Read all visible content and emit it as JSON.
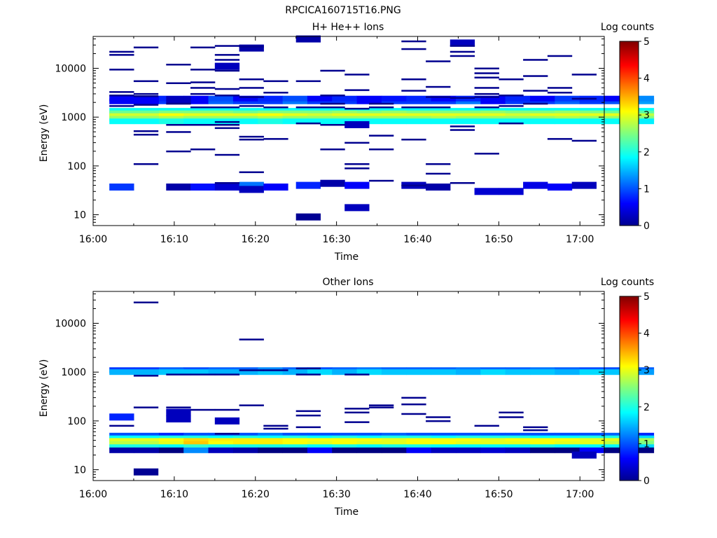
{
  "figure_title": "RPCICA160715T16.PNG",
  "chart_data": [
    {
      "type": "heatmap",
      "title": "H+ He++ Ions",
      "xlabel": "Time",
      "ylabel": "Energy (eV)",
      "xlim": [
        "16:00",
        "17:03"
      ],
      "ylim": [
        6,
        45000
      ],
      "yscale": "log",
      "xticks": [
        "16:00",
        "16:10",
        "16:20",
        "16:30",
        "16:40",
        "16:50",
        "17:00"
      ],
      "yticks": [
        "10",
        "100",
        "1000",
        "10000"
      ],
      "colorbar": {
        "label": "Log counts",
        "ticks": [
          "0",
          "1",
          "2",
          "3",
          "4",
          "5"
        ],
        "range": [
          0,
          5
        ],
        "colormap": "jet"
      },
      "bands": [
        {
          "e": 2100,
          "v": [
            0.6,
            0.6,
            0.9,
            0.6,
            1.1,
            0.9,
            0.9,
            1.2,
            0.9,
            0.9,
            0.6,
            0.9,
            0.9,
            0.9,
            1.2,
            0.6,
            0.9,
            0.9,
            1.1,
            0.9,
            1.0,
            1.4
          ]
        },
        {
          "e": 2400,
          "v": [
            0.6,
            0.6,
            0.8,
            0.6,
            1.0,
            0.6,
            0.8,
            1.0,
            0.6,
            0.8,
            0.6,
            0.7,
            0.8,
            0.6,
            0.8,
            0.6,
            0.8,
            0.6,
            0.9,
            0.8,
            0.6,
            1.3
          ]
        },
        {
          "e": 1350,
          "v": [
            1.9,
            1.9,
            1.9,
            1.9,
            1.9,
            1.9,
            1.9,
            1.9,
            1.9,
            1.9,
            1.9,
            1.9,
            1.9,
            1.9,
            1.9,
            1.9,
            1.9,
            1.9,
            1.9,
            1.9,
            1.9,
            1.9
          ]
        },
        {
          "e": 1200,
          "v": [
            2.4,
            2.4,
            2.5,
            2.5,
            2.5,
            2.4,
            2.5,
            2.5,
            2.5,
            2.6,
            2.5,
            2.6,
            2.5,
            2.5,
            2.5,
            2.6,
            2.5,
            2.5,
            2.6,
            2.5,
            2.4,
            2.3
          ]
        },
        {
          "e": 1050,
          "v": [
            2.9,
            2.9,
            3.1,
            3.0,
            3.0,
            3.0,
            3.1,
            3.0,
            2.9,
            3.0,
            3.0,
            3.0,
            3.0,
            3.0,
            3.0,
            3.0,
            2.9,
            3.0,
            3.0,
            3.0,
            3.0,
            2.8
          ]
        },
        {
          "e": 920,
          "v": [
            2.6,
            2.6,
            2.7,
            2.6,
            2.6,
            2.6,
            2.7,
            2.6,
            2.6,
            2.6,
            2.6,
            2.6,
            2.6,
            2.7,
            2.6,
            2.6,
            2.6,
            2.6,
            2.7,
            2.6,
            2.6,
            2.5
          ]
        },
        {
          "e": 820,
          "v": [
            1.9,
            1.9,
            2.0,
            1.9,
            1.9,
            1.9,
            2.0,
            1.9,
            1.9,
            1.9,
            1.9,
            1.9,
            1.9,
            1.9,
            1.9,
            1.9,
            1.9,
            1.9,
            1.9,
            1.9,
            1.9,
            1.8
          ]
        }
      ],
      "pixels": [
        {
          "t": "16:02",
          "e": 37,
          "v": 0.9
        },
        {
          "t": "16:09",
          "e": 37,
          "v": 0.2
        },
        {
          "t": "16:12",
          "e": 37,
          "v": 0.7
        },
        {
          "t": "16:15",
          "e": 37,
          "v": 0.4
        },
        {
          "t": "16:18",
          "e": 40,
          "v": 1.2
        },
        {
          "t": "16:18",
          "e": 33,
          "v": 0.3
        },
        {
          "t": "16:21",
          "e": 37,
          "v": 0.6
        },
        {
          "t": "16:25",
          "e": 40,
          "v": 0.8
        },
        {
          "t": "16:28",
          "e": 44,
          "v": 0.2
        },
        {
          "t": "16:31",
          "e": 40,
          "v": 0.6
        },
        {
          "t": "16:38",
          "e": 40,
          "v": 0.3
        },
        {
          "t": "16:41",
          "e": 37,
          "v": 0.2
        },
        {
          "t": "16:47",
          "e": 30,
          "v": 0.4
        },
        {
          "t": "16:50",
          "e": 30,
          "v": 0.4
        },
        {
          "t": "16:53",
          "e": 40,
          "v": 0.5
        },
        {
          "t": "16:56",
          "e": 37,
          "v": 0.6
        },
        {
          "t": "16:59",
          "e": 40,
          "v": 0.3
        },
        {
          "t": "16:25",
          "e": 9,
          "v": 0.1
        },
        {
          "t": "16:31",
          "e": 14,
          "v": 0.3
        },
        {
          "t": "16:31",
          "e": 700,
          "v": 0.3
        },
        {
          "t": "16:09",
          "e": 2300,
          "v": 0.3
        },
        {
          "t": "16:15",
          "e": 11000,
          "v": 0.3
        },
        {
          "t": "16:18",
          "e": 26000,
          "v": 0.2
        },
        {
          "t": "16:44",
          "e": 33000,
          "v": 0.3
        },
        {
          "t": "16:25",
          "e": 40000,
          "v": 0.2
        }
      ],
      "lines": [
        {
          "t": "16:02",
          "e": [
            22000,
            19000,
            9500,
            3300,
            2800,
            1700
          ]
        },
        {
          "t": "16:05",
          "e": [
            27000,
            5500,
            3000,
            2700,
            1800,
            520,
            440,
            110
          ]
        },
        {
          "t": "16:09",
          "e": [
            12000,
            5000,
            1900,
            700,
            500,
            200
          ]
        },
        {
          "t": "16:12",
          "e": [
            27000,
            9500,
            5200,
            4000,
            3000,
            1600,
            700,
            220
          ]
        },
        {
          "t": "16:15",
          "e": [
            29000,
            19000,
            15000,
            9000,
            3800,
            2800,
            1600,
            800,
            700,
            600,
            170,
            45
          ]
        },
        {
          "t": "16:18",
          "e": [
            28000,
            6000,
            4000,
            2600,
            1700,
            400,
            350,
            75
          ]
        },
        {
          "t": "16:21",
          "e": [
            5500,
            3200,
            1600,
            360
          ]
        },
        {
          "t": "16:25",
          "e": [
            5500,
            750,
            1600
          ]
        },
        {
          "t": "16:28",
          "e": [
            9000,
            2800,
            1900,
            1600,
            700,
            220
          ]
        },
        {
          "t": "16:31",
          "e": [
            7500,
            3600,
            1500,
            300,
            110,
            90
          ]
        },
        {
          "t": "16:34",
          "e": [
            1900,
            1600,
            420,
            220,
            50
          ]
        },
        {
          "t": "16:38",
          "e": [
            36000,
            25000,
            6000,
            3500,
            1600,
            350,
            40
          ]
        },
        {
          "t": "16:41",
          "e": [
            14000,
            4200,
            2600,
            1600,
            110,
            70
          ]
        },
        {
          "t": "16:44",
          "e": [
            29000,
            22000,
            18000,
            2500,
            650,
            550,
            45
          ]
        },
        {
          "t": "16:47",
          "e": [
            10000,
            8000,
            6500,
            4000,
            3000,
            2600,
            1600,
            180
          ]
        },
        {
          "t": "16:50",
          "e": [
            6000,
            2800,
            1700,
            750
          ]
        },
        {
          "t": "16:53",
          "e": [
            15000,
            7000,
            3500,
            1900
          ]
        },
        {
          "t": "16:56",
          "e": [
            18000,
            4000,
            3200,
            360
          ]
        },
        {
          "t": "16:59",
          "e": [
            7500,
            2400,
            330
          ]
        }
      ]
    },
    {
      "type": "heatmap",
      "title": "Other Ions",
      "xlabel": "Time",
      "ylabel": "Energy (eV)",
      "xlim": [
        "16:00",
        "17:03"
      ],
      "ylim": [
        6,
        45000
      ],
      "yscale": "log",
      "xticks": [
        "16:00",
        "16:10",
        "16:20",
        "16:30",
        "16:40",
        "16:50",
        "17:00"
      ],
      "yticks": [
        "10",
        "100",
        "1000",
        "10000"
      ],
      "colorbar": {
        "label": "Log counts",
        "ticks": [
          "0",
          "1",
          "2",
          "3",
          "4",
          "5"
        ],
        "range": [
          0,
          5
        ],
        "colormap": "jet"
      },
      "bands": [
        {
          "e": 1100,
          "v": [
            0.9,
            0.9,
            1.1,
            1.0,
            1.1,
            1.1,
            1.3,
            1.1,
            1.0,
            1.1,
            1.2,
            1.1,
            1.1,
            1.1,
            1.2,
            1.1,
            1.1,
            1.2,
            1.1,
            1.0,
            1.0,
            1.1
          ]
        },
        {
          "e": 1000,
          "v": [
            1.5,
            1.5,
            1.6,
            1.6,
            1.5,
            1.5,
            1.6,
            1.5,
            1.7,
            1.5,
            1.7,
            1.6,
            1.6,
            1.6,
            1.5,
            1.7,
            1.6,
            1.6,
            1.5,
            1.7,
            1.6,
            1.4
          ]
        },
        {
          "e": 50,
          "v": [
            1.0,
            1.0,
            0.8,
            1.0,
            1.0,
            1.0,
            1.2,
            1.0,
            1.0,
            1.0,
            1.0,
            1.1,
            1.0,
            1.0,
            1.0,
            1.0,
            1.0,
            1.0,
            1.0,
            1.0,
            1.1,
            0.8
          ]
        },
        {
          "e": 44,
          "v": [
            1.9,
            1.9,
            2.0,
            2.0,
            1.9,
            2.0,
            1.9,
            2.0,
            1.9,
            2.0,
            1.9,
            2.0,
            2.0,
            1.9,
            2.0,
            2.0,
            2.0,
            1.9,
            1.9,
            2.0,
            2.0,
            1.7
          ]
        },
        {
          "e": 39,
          "v": [
            3.0,
            3.0,
            3.1,
            3.3,
            3.2,
            3.2,
            3.2,
            3.1,
            3.1,
            3.1,
            3.1,
            3.0,
            3.1,
            3.1,
            3.1,
            3.0,
            3.1,
            3.1,
            3.1,
            3.0,
            3.0,
            2.7
          ]
        },
        {
          "e": 34,
          "v": [
            2.8,
            2.8,
            3.0,
            3.4,
            3.1,
            3.2,
            3.2,
            3.1,
            3.0,
            3.1,
            3.0,
            3.0,
            3.1,
            3.1,
            3.0,
            3.0,
            3.0,
            3.1,
            3.0,
            3.0,
            2.8,
            2.5
          ]
        },
        {
          "e": 29,
          "v": [
            2.0,
            2.0,
            1.9,
            2.1,
            2.0,
            2.0,
            2.0,
            2.0,
            1.9,
            2.0,
            1.9,
            2.0,
            2.0,
            1.9,
            1.9,
            1.9,
            1.9,
            2.0,
            1.9,
            1.9,
            1.9,
            1.7
          ]
        },
        {
          "e": 25,
          "v": [
            0.2,
            0.2,
            0.0,
            1.3,
            0.3,
            0.2,
            0.0,
            0.0,
            0.6,
            0.0,
            0.0,
            0.0,
            0.6,
            0.3,
            0.3,
            0.4,
            0.3,
            0.0,
            0.0,
            0.6,
            0.0,
            0.0
          ]
        }
      ],
      "pixels": [
        {
          "t": "16:02",
          "e": 120,
          "v": 0.8
        },
        {
          "t": "16:05",
          "e": 9,
          "v": 0.1
        },
        {
          "t": "16:09",
          "e": 110,
          "v": 0.3
        },
        {
          "t": "16:09",
          "e": 150,
          "v": 0.3
        },
        {
          "t": "16:15",
          "e": 100,
          "v": 0.3
        },
        {
          "t": "16:59",
          "e": 20,
          "v": 0.3
        }
      ],
      "lines": [
        {
          "t": "16:02",
          "e": [
            80
          ]
        },
        {
          "t": "16:05",
          "e": [
            27000,
            850,
            190
          ]
        },
        {
          "t": "16:09",
          "e": [
            900,
            190
          ]
        },
        {
          "t": "16:12",
          "e": [
            900,
            170
          ]
        },
        {
          "t": "16:15",
          "e": [
            900,
            170,
            55
          ]
        },
        {
          "t": "16:18",
          "e": [
            4700,
            1100,
            210
          ]
        },
        {
          "t": "16:21",
          "e": [
            1100,
            80,
            70
          ]
        },
        {
          "t": "16:25",
          "e": [
            1200,
            900,
            160,
            130,
            75
          ]
        },
        {
          "t": "16:31",
          "e": [
            900,
            180,
            150,
            95
          ]
        },
        {
          "t": "16:34",
          "e": [
            210,
            190
          ]
        },
        {
          "t": "16:38",
          "e": [
            300,
            220,
            140
          ]
        },
        {
          "t": "16:41",
          "e": [
            120,
            100
          ]
        },
        {
          "t": "16:47",
          "e": [
            80
          ]
        },
        {
          "t": "16:50",
          "e": [
            150,
            120
          ]
        },
        {
          "t": "16:53",
          "e": [
            75,
            65
          ]
        }
      ]
    }
  ]
}
